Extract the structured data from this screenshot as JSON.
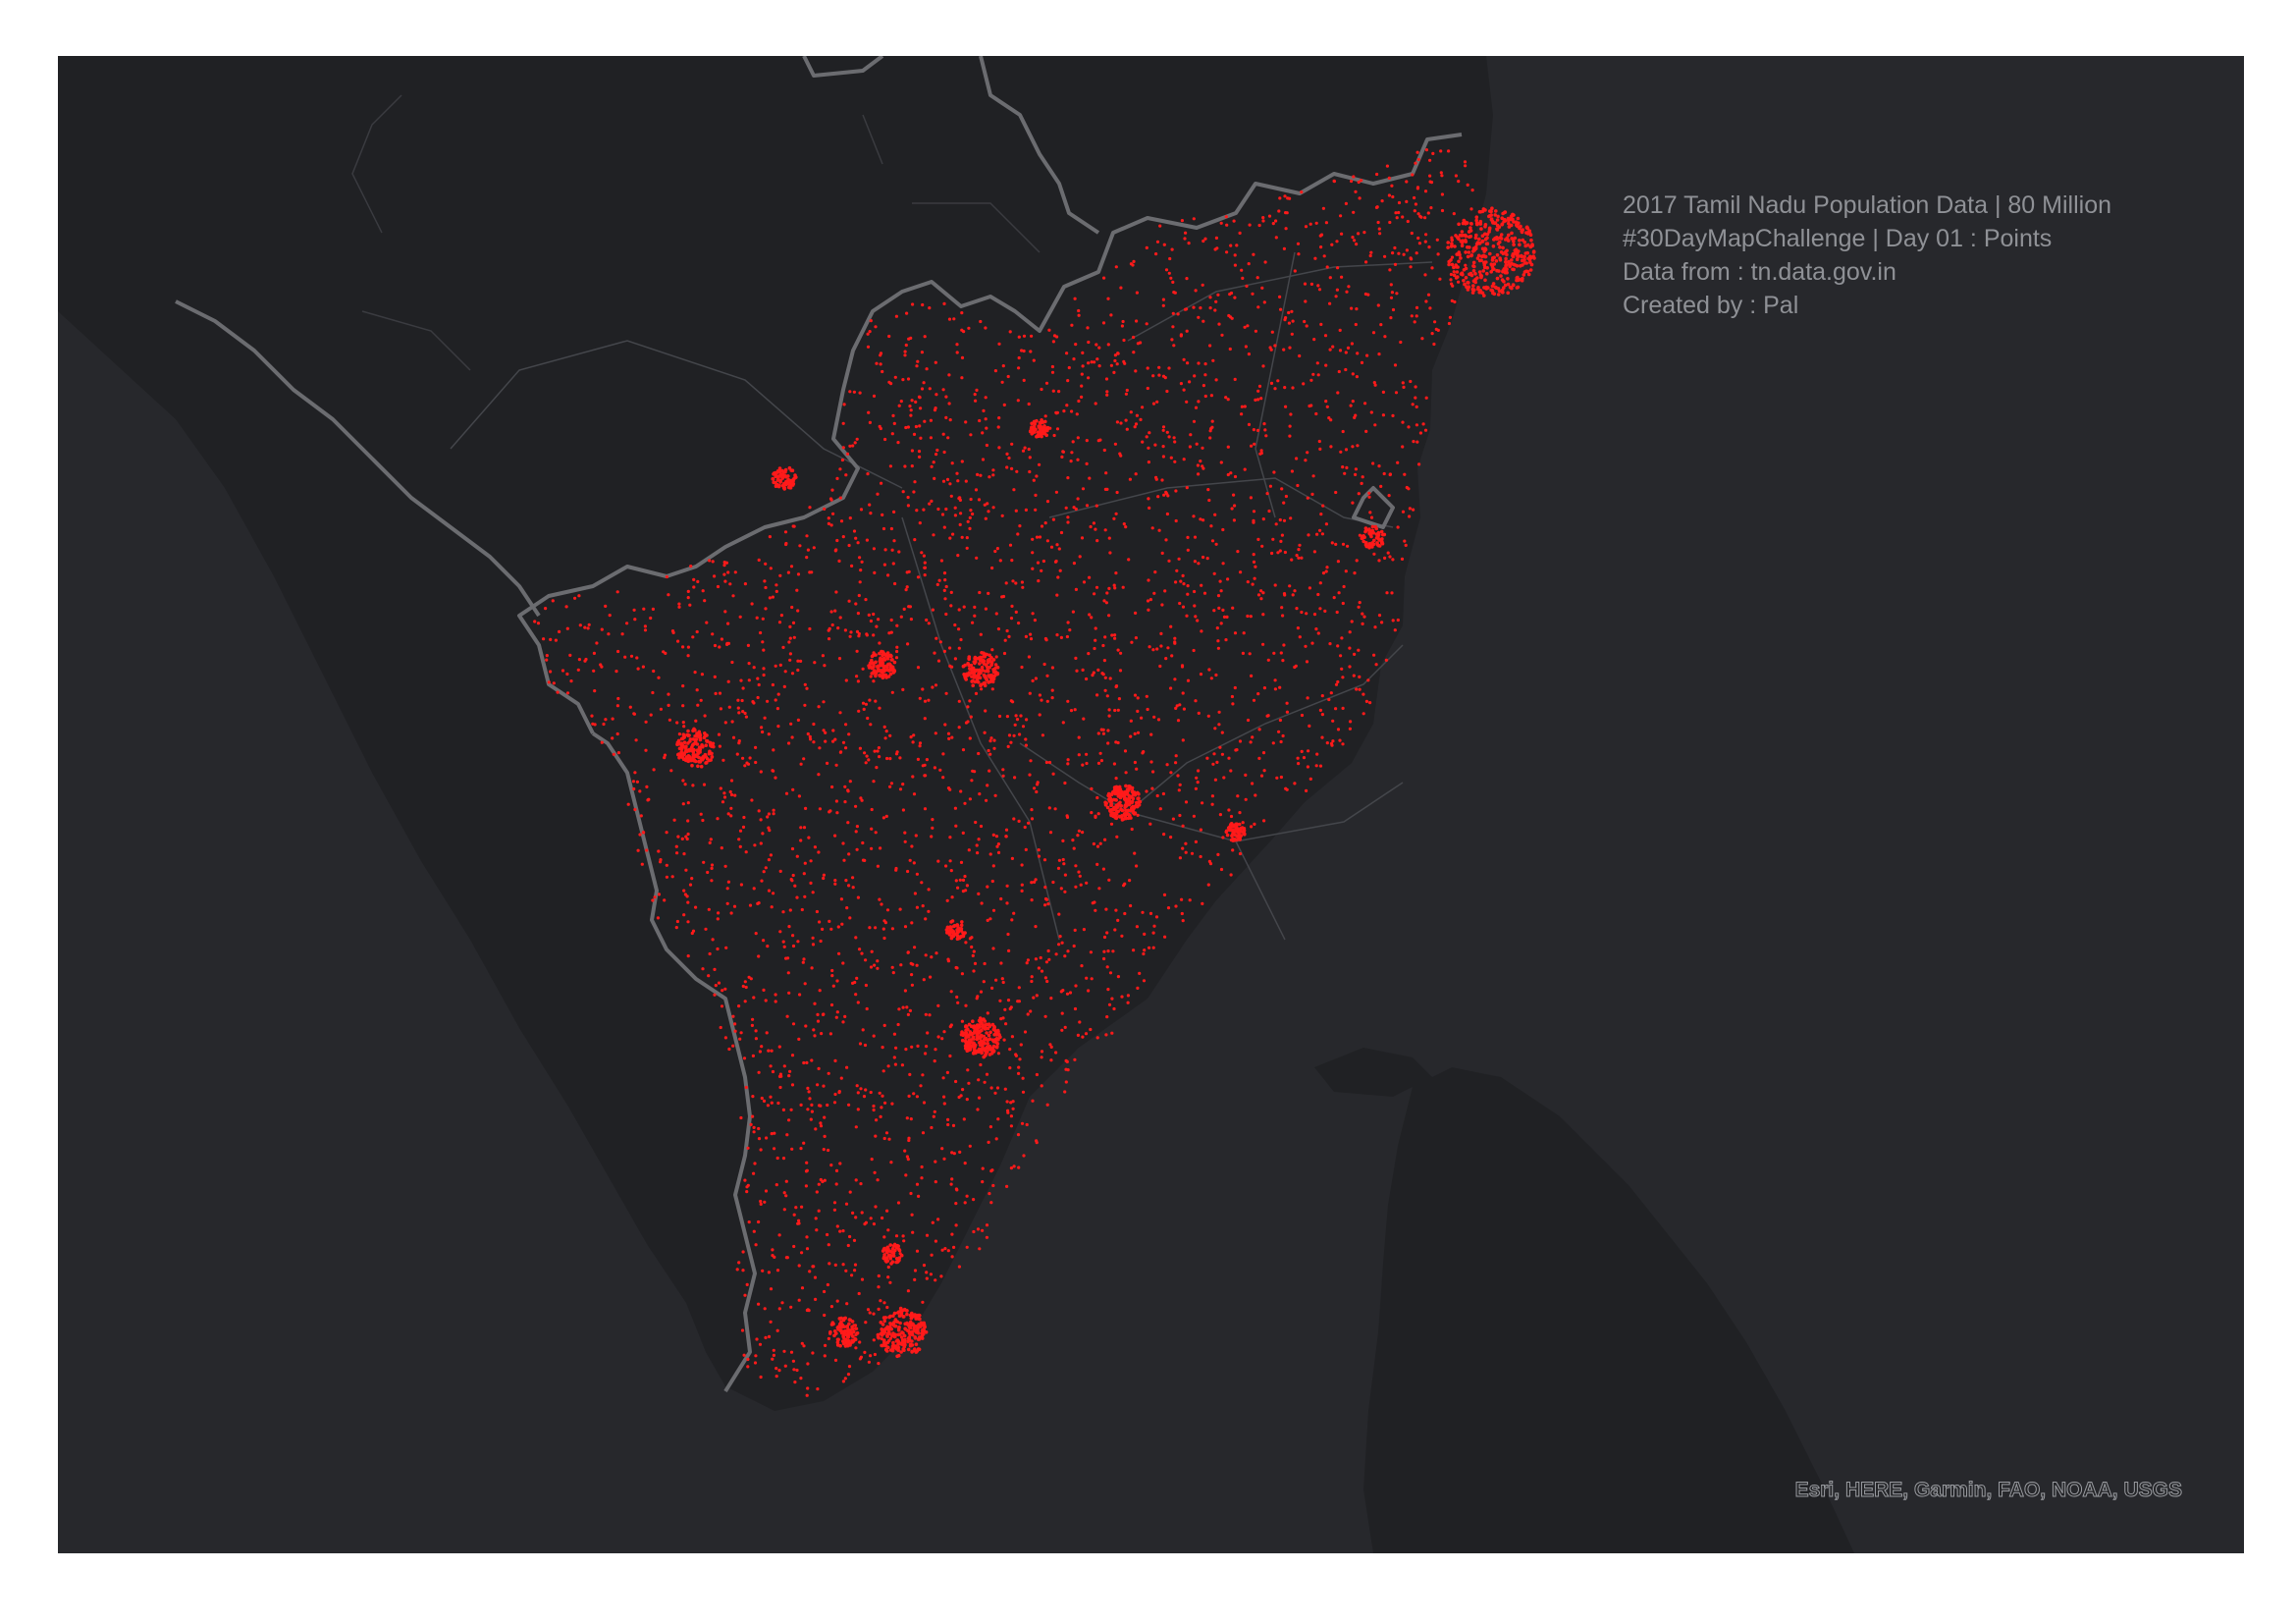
{
  "map": {
    "colors": {
      "ocean": "#27282c",
      "land": "#202124",
      "state_border": "#6b6c70",
      "road": "#44464b",
      "point": "#ff1a1a"
    },
    "info_lines": [
      "2017 Tamil Nadu Population Data | 80 Million",
      "#30DayMapChallenge | Day 01 : Points",
      "Data from : tn.data.gov.in",
      "Created by : Pal"
    ],
    "attribution": "Esri, HERE, Garmin, FAO, NOAA, USGS"
  }
}
